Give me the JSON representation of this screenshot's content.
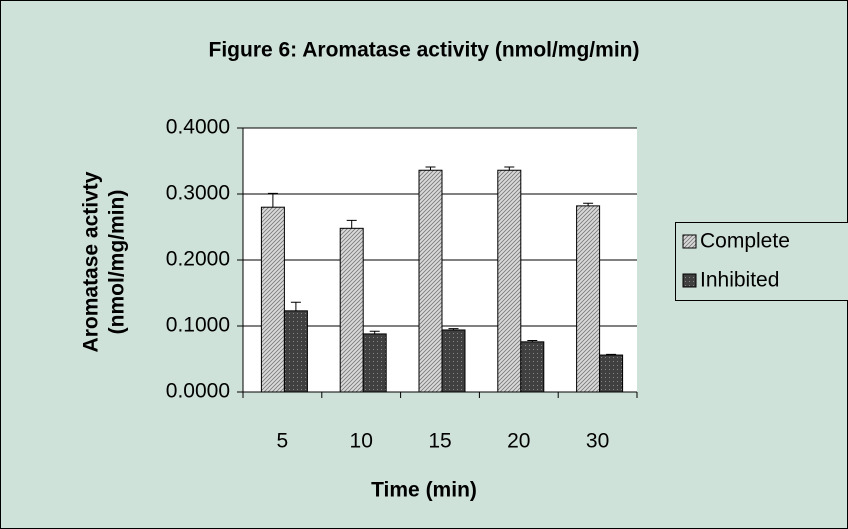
{
  "chart_data": {
    "type": "bar",
    "title": "Figure 6: Aromatase activity (nmol/mg/min)",
    "x_label": "Time (min)",
    "y_label": [
      "Aromatase activty",
      "(nmol/mg/min)"
    ],
    "categories": [
      "5",
      "10",
      "15",
      "20",
      "30"
    ],
    "series": [
      {
        "name": "Complete",
        "color": "#d9d9d9",
        "values": [
          0.28,
          0.248,
          0.336,
          0.336,
          0.282
        ],
        "errors": [
          0.021,
          0.012,
          0.005,
          0.005,
          0.004
        ]
      },
      {
        "name": "Inhibited",
        "color": "#404040",
        "values": [
          0.123,
          0.088,
          0.094,
          0.076,
          0.056
        ],
        "errors": [
          0.013,
          0.004,
          0.002,
          0.002,
          0.001
        ]
      }
    ],
    "ylim": [
      0,
      0.4
    ],
    "yticks": [
      {
        "value": 0,
        "label": "0.0000"
      },
      {
        "value": 0.1,
        "label": "0.1000"
      },
      {
        "value": 0.2,
        "label": "0.2000"
      },
      {
        "value": 0.3,
        "label": "0.3000"
      },
      {
        "value": 0.4,
        "label": "0.4000"
      }
    ],
    "grid": true,
    "legend": "right"
  }
}
